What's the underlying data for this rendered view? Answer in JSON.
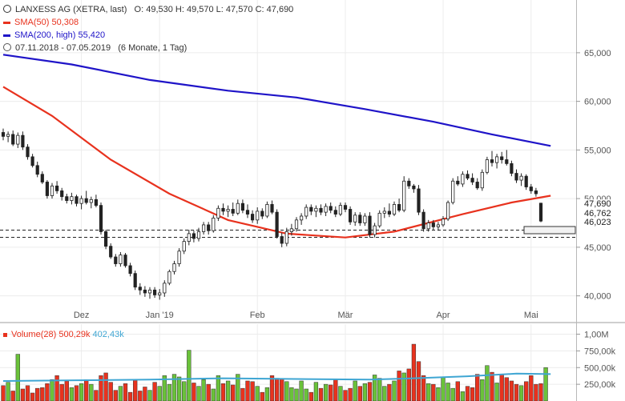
{
  "legend": {
    "title": "LANXESS AG (XETRA, last)",
    "ohlc": "O: 49,530  H: 49,570  L: 47,570  C: 47,690",
    "sma50_label": "SMA(50)",
    "sma50_value": "50,308",
    "sma50_color": "#e8321e",
    "sma200_label": "SMA(200, high)",
    "sma200_value": "55,420",
    "sma200_color": "#1f14c8",
    "range_text": "07.11.2018 - 07.05.2019",
    "range_note": "(6 Monate, 1 Tag)",
    "clock_icon": "clock-icon"
  },
  "volume_legend": {
    "label": "Volume(28)",
    "value": "500,29k",
    "avg_value": "402,43k",
    "avg_color": "#3fa6d3"
  },
  "chart_data": {
    "type": "candlestick",
    "price_axis": {
      "ticks": [
        "40,000",
        "45,000",
        "50,000",
        "55,000",
        "60,000",
        "65,000"
      ],
      "ylim": [
        37.5,
        67.5
      ]
    },
    "volume_axis": {
      "ticks": [
        "250,00k",
        "500,00k",
        "750,00k",
        "1,00M"
      ],
      "ylim": [
        0,
        1150000
      ]
    },
    "month_labels": [
      "Dez",
      "Jan '19",
      "Feb",
      "Mär",
      "Apr",
      "Mai"
    ],
    "price_labels": [
      "47,690",
      "46,762",
      "46,023"
    ],
    "ref_lines": [
      46.762,
      46.023
    ],
    "ohlc": [
      [
        56.8,
        57.2,
        56.0,
        56.4
      ],
      [
        56.4,
        56.9,
        55.8,
        56.6
      ],
      [
        56.6,
        57.0,
        55.4,
        55.6
      ],
      [
        55.6,
        56.8,
        55.2,
        56.5
      ],
      [
        56.5,
        56.9,
        55.0,
        55.3
      ],
      [
        55.3,
        55.6,
        54.0,
        54.3
      ],
      [
        54.3,
        54.6,
        53.2,
        53.4
      ],
      [
        53.4,
        53.8,
        52.2,
        52.5
      ],
      [
        52.5,
        52.8,
        51.5,
        51.7
      ],
      [
        51.7,
        51.9,
        50.0,
        50.3
      ],
      [
        50.3,
        51.6,
        50.0,
        51.3
      ],
      [
        51.3,
        51.8,
        50.5,
        50.8
      ],
      [
        50.8,
        51.1,
        49.8,
        50.2
      ],
      [
        50.2,
        50.5,
        49.5,
        49.8
      ],
      [
        49.8,
        50.6,
        49.4,
        50.2
      ],
      [
        50.2,
        50.4,
        49.2,
        49.5
      ],
      [
        49.5,
        50.3,
        48.9,
        50.0
      ],
      [
        50.0,
        50.8,
        49.4,
        49.6
      ],
      [
        49.6,
        50.2,
        49.0,
        49.9
      ],
      [
        49.9,
        50.4,
        49.1,
        49.3
      ],
      [
        49.3,
        49.6,
        46.3,
        46.6
      ],
      [
        46.6,
        46.8,
        44.8,
        45.1
      ],
      [
        45.1,
        45.4,
        43.8,
        44.0
      ],
      [
        44.0,
        44.3,
        43.0,
        43.3
      ],
      [
        43.3,
        44.5,
        43.0,
        44.2
      ],
      [
        44.2,
        44.4,
        42.9,
        43.1
      ],
      [
        43.1,
        43.4,
        42.0,
        42.3
      ],
      [
        42.3,
        42.6,
        40.6,
        40.9
      ],
      [
        40.9,
        41.3,
        40.1,
        40.6
      ],
      [
        40.6,
        41.0,
        39.9,
        40.3
      ],
      [
        40.3,
        40.9,
        39.7,
        40.6
      ],
      [
        40.6,
        40.9,
        39.8,
        40.1
      ],
      [
        40.1,
        40.7,
        39.6,
        40.3
      ],
      [
        40.3,
        41.6,
        39.9,
        41.3
      ],
      [
        41.3,
        42.7,
        41.1,
        42.5
      ],
      [
        42.5,
        43.6,
        42.2,
        43.3
      ],
      [
        43.3,
        44.9,
        43.0,
        44.6
      ],
      [
        44.6,
        45.9,
        44.3,
        45.6
      ],
      [
        45.6,
        46.8,
        45.2,
        46.4
      ],
      [
        46.4,
        46.7,
        45.5,
        45.9
      ],
      [
        45.9,
        47.0,
        45.6,
        46.6
      ],
      [
        46.6,
        47.6,
        46.3,
        47.3
      ],
      [
        47.3,
        47.6,
        46.3,
        46.7
      ],
      [
        46.7,
        48.3,
        46.5,
        48.0
      ],
      [
        48.0,
        49.3,
        47.7,
        49.0
      ],
      [
        49.0,
        49.5,
        48.3,
        48.7
      ],
      [
        48.7,
        49.3,
        48.1,
        48.9
      ],
      [
        48.9,
        49.6,
        48.2,
        48.5
      ],
      [
        48.5,
        49.9,
        48.3,
        49.5
      ],
      [
        49.5,
        49.9,
        48.5,
        48.8
      ],
      [
        48.8,
        49.4,
        48.0,
        48.4
      ],
      [
        48.4,
        48.8,
        47.5,
        47.8
      ],
      [
        47.8,
        49.1,
        47.4,
        48.7
      ],
      [
        48.7,
        49.0,
        47.9,
        48.2
      ],
      [
        48.2,
        49.7,
        48.0,
        49.4
      ],
      [
        49.4,
        49.8,
        48.4,
        48.6
      ],
      [
        48.6,
        48.9,
        45.9,
        46.1
      ],
      [
        46.1,
        46.5,
        45.0,
        45.4
      ],
      [
        45.4,
        47.0,
        45.1,
        46.6
      ],
      [
        46.6,
        47.4,
        46.2,
        46.9
      ],
      [
        46.9,
        48.1,
        46.6,
        47.8
      ],
      [
        47.8,
        48.5,
        47.3,
        48.2
      ],
      [
        48.2,
        49.4,
        47.9,
        49.1
      ],
      [
        49.1,
        49.4,
        48.3,
        48.7
      ],
      [
        48.7,
        49.3,
        48.1,
        49.0
      ],
      [
        49.0,
        49.4,
        48.3,
        48.6
      ],
      [
        48.6,
        49.5,
        48.2,
        49.2
      ],
      [
        49.2,
        49.6,
        48.5,
        48.8
      ],
      [
        48.8,
        49.2,
        48.1,
        48.4
      ],
      [
        48.4,
        49.6,
        48.2,
        49.3
      ],
      [
        49.3,
        49.6,
        48.6,
        48.9
      ],
      [
        48.9,
        49.2,
        47.3,
        47.6
      ],
      [
        47.6,
        48.6,
        47.2,
        48.3
      ],
      [
        48.3,
        48.6,
        47.2,
        47.5
      ],
      [
        47.5,
        48.5,
        47.2,
        48.2
      ],
      [
        48.2,
        48.6,
        46.0,
        46.3
      ],
      [
        46.3,
        47.5,
        46.0,
        47.2
      ],
      [
        47.2,
        48.8,
        47.0,
        48.5
      ],
      [
        48.5,
        49.1,
        48.0,
        48.7
      ],
      [
        48.7,
        49.5,
        48.1,
        48.4
      ],
      [
        48.4,
        49.7,
        48.2,
        49.4
      ],
      [
        49.4,
        50.0,
        48.6,
        48.8
      ],
      [
        48.8,
        52.3,
        48.6,
        51.8
      ],
      [
        51.8,
        52.1,
        51.0,
        51.3
      ],
      [
        51.3,
        51.5,
        50.6,
        51.0
      ],
      [
        51.0,
        51.4,
        48.3,
        48.6
      ],
      [
        48.6,
        48.9,
        46.6,
        46.9
      ],
      [
        46.9,
        47.8,
        46.6,
        47.5
      ],
      [
        47.5,
        47.8,
        46.8,
        47.1
      ],
      [
        47.1,
        47.6,
        46.7,
        47.3
      ],
      [
        47.3,
        48.2,
        47.1,
        47.9
      ],
      [
        47.9,
        49.8,
        47.7,
        49.6
      ],
      [
        49.6,
        52.1,
        49.4,
        51.8
      ],
      [
        51.8,
        52.3,
        51.3,
        51.5
      ],
      [
        51.5,
        52.8,
        51.2,
        52.5
      ],
      [
        52.5,
        52.9,
        51.9,
        52.1
      ],
      [
        52.1,
        52.6,
        51.4,
        51.7
      ],
      [
        51.7,
        52.1,
        50.9,
        51.1
      ],
      [
        51.1,
        53.0,
        50.8,
        52.7
      ],
      [
        52.7,
        54.3,
        52.5,
        54.0
      ],
      [
        54.0,
        54.9,
        53.3,
        53.7
      ],
      [
        53.7,
        54.6,
        53.1,
        54.3
      ],
      [
        54.3,
        54.8,
        53.6,
        54.0
      ],
      [
        54.0,
        55.0,
        53.4,
        53.6
      ],
      [
        53.6,
        53.9,
        52.3,
        52.6
      ],
      [
        52.6,
        53.0,
        51.6,
        51.9
      ],
      [
        51.9,
        52.6,
        51.3,
        52.3
      ],
      [
        52.3,
        52.5,
        50.9,
        51.2
      ],
      [
        51.2,
        51.5,
        50.5,
        50.8
      ],
      [
        50.8,
        51.1,
        50.2,
        50.5
      ],
      [
        49.53,
        49.57,
        47.57,
        47.69
      ]
    ],
    "sma50": [
      [
        0,
        61.5
      ],
      [
        10,
        58.5
      ],
      [
        22,
        54.0
      ],
      [
        34,
        50.5
      ],
      [
        46,
        47.8
      ],
      [
        58,
        46.4
      ],
      [
        70,
        46.0
      ],
      [
        80,
        46.6
      ],
      [
        94,
        48.4
      ],
      [
        104,
        49.6
      ],
      [
        112,
        50.3
      ]
    ],
    "sma200": [
      [
        0,
        64.8
      ],
      [
        14,
        63.8
      ],
      [
        30,
        62.2
      ],
      [
        46,
        61.1
      ],
      [
        60,
        60.4
      ],
      [
        74,
        59.2
      ],
      [
        88,
        57.9
      ],
      [
        100,
        56.6
      ],
      [
        112,
        55.42
      ]
    ],
    "volume_k": [
      230,
      280,
      150,
      700,
      180,
      230,
      120,
      190,
      200,
      260,
      320,
      380,
      250,
      300,
      200,
      230,
      260,
      320,
      250,
      160,
      380,
      420,
      280,
      160,
      220,
      260,
      130,
      310,
      150,
      210,
      160,
      280,
      220,
      380,
      250,
      400,
      360,
      290,
      760,
      270,
      220,
      320,
      250,
      180,
      380,
      260,
      300,
      240,
      400,
      190,
      300,
      290,
      220,
      130,
      200,
      380,
      340,
      330,
      290,
      200,
      180,
      300,
      180,
      130,
      280,
      190,
      250,
      240,
      330,
      220,
      160,
      190,
      300,
      220,
      260,
      280,
      390,
      340,
      220,
      250,
      300,
      450,
      420,
      480,
      850,
      590,
      380,
      260,
      250,
      200,
      350,
      270,
      190,
      290,
      140,
      220,
      200,
      400,
      320,
      530,
      430,
      270,
      400,
      350,
      300,
      250,
      230,
      290,
      380,
      250,
      260,
      500
    ],
    "volume_avg_k": [
      [
        0,
        300
      ],
      [
        15,
        310
      ],
      [
        30,
        320
      ],
      [
        45,
        340
      ],
      [
        60,
        330
      ],
      [
        75,
        320
      ],
      [
        84,
        340
      ],
      [
        95,
        370
      ],
      [
        105,
        410
      ],
      [
        112,
        402.43
      ]
    ]
  }
}
